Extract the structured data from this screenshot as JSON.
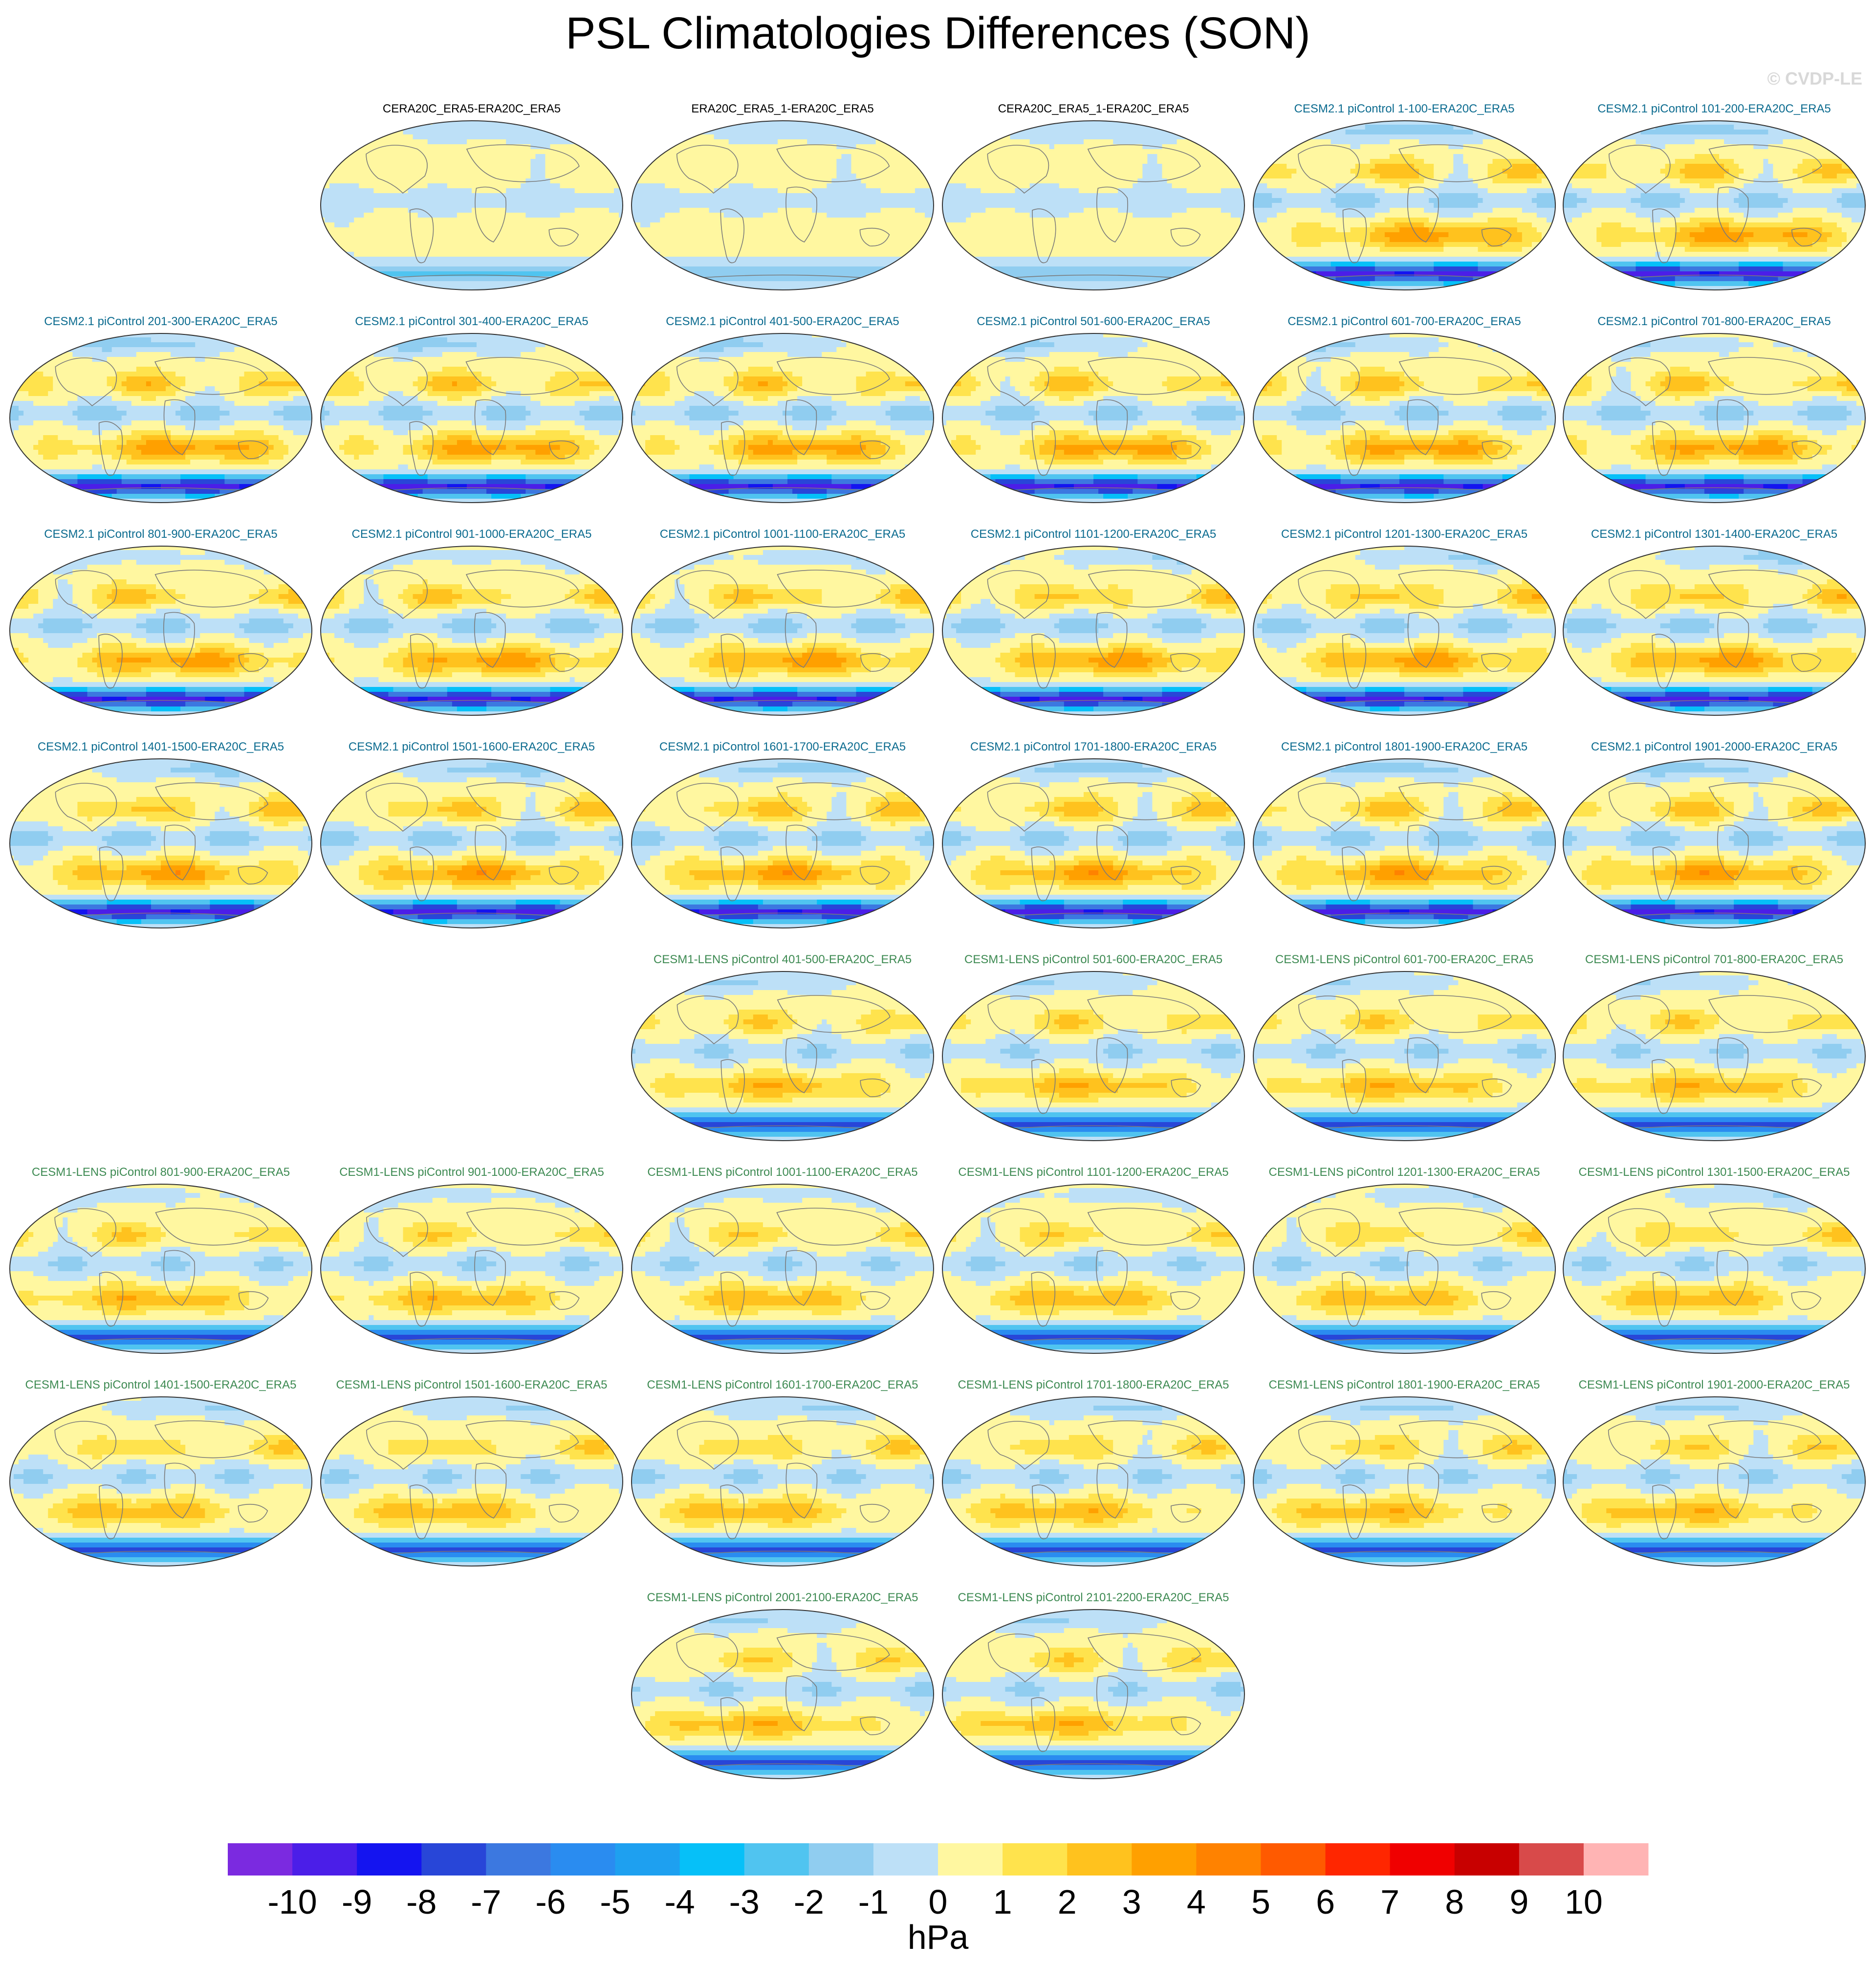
{
  "title": "PSL Climatologies Differences (SON)",
  "watermark": "© CVDP-LE",
  "chart_data": {
    "type": "heatmap",
    "projection": "robinson",
    "variable": "PSL",
    "season": "SON",
    "units": "hPa",
    "colorbar": {
      "levels": [
        -10,
        -9,
        -8,
        -7,
        -6,
        -5,
        -4,
        -3,
        -2,
        -1,
        0,
        1,
        2,
        3,
        4,
        5,
        6,
        7,
        8,
        9,
        10
      ],
      "tick_labels": [
        "-10",
        "-9",
        "-8",
        "-7",
        "-6",
        "-5",
        "-4",
        "-3",
        "-2",
        "-1",
        "0",
        "1",
        "2",
        "3",
        "4",
        "5",
        "6",
        "7",
        "8",
        "9",
        "10"
      ],
      "colors": [
        "#7b2ae0",
        "#4b1ee8",
        "#1414f0",
        "#2846d8",
        "#3c78e0",
        "#2a8cf0",
        "#1ea0f0",
        "#06c0f8",
        "#50c4f0",
        "#90cdf0",
        "#bde0f7",
        "#fff7a0",
        "#ffe34d",
        "#ffc21e",
        "#ffa000",
        "#ff8200",
        "#ff5a00",
        "#ff2600",
        "#f00000",
        "#c80000",
        "#d84a4a",
        "#ffb4b4"
      ],
      "unit_label": "hPa"
    },
    "panels": [
      {
        "title": "CERA20C_ERA5-ERA20C_ERA5",
        "group": "obs",
        "row": 0,
        "col": 1,
        "amp": 0.25,
        "seed": 1
      },
      {
        "title": "ERA20C_ERA5_1-ERA20C_ERA5",
        "group": "obs",
        "row": 0,
        "col": 2,
        "amp": 0.2,
        "seed": 2
      },
      {
        "title": "CERA20C_ERA5_1-ERA20C_ERA5",
        "group": "obs",
        "row": 0,
        "col": 3,
        "amp": 0.2,
        "seed": 3
      },
      {
        "title": "CESM2.1 piControl 1-100-ERA20C_ERA5",
        "group": "cesm2",
        "row": 0,
        "col": 4,
        "amp": 1,
        "seed": 4
      },
      {
        "title": "CESM2.1 piControl 101-200-ERA20C_ERA5",
        "group": "cesm2",
        "row": 0,
        "col": 5,
        "amp": 1,
        "seed": 5
      },
      {
        "title": "CESM2.1 piControl 201-300-ERA20C_ERA5",
        "group": "cesm2",
        "row": 1,
        "col": 0,
        "amp": 1,
        "seed": 6
      },
      {
        "title": "CESM2.1 piControl 301-400-ERA20C_ERA5",
        "group": "cesm2",
        "row": 1,
        "col": 1,
        "amp": 1,
        "seed": 7
      },
      {
        "title": "CESM2.1 piControl 401-500-ERA20C_ERA5",
        "group": "cesm2",
        "row": 1,
        "col": 2,
        "amp": 1,
        "seed": 8
      },
      {
        "title": "CESM2.1 piControl 501-600-ERA20C_ERA5",
        "group": "cesm2",
        "row": 1,
        "col": 3,
        "amp": 1,
        "seed": 9
      },
      {
        "title": "CESM2.1 piControl 601-700-ERA20C_ERA5",
        "group": "cesm2",
        "row": 1,
        "col": 4,
        "amp": 1,
        "seed": 10
      },
      {
        "title": "CESM2.1 piControl 701-800-ERA20C_ERA5",
        "group": "cesm2",
        "row": 1,
        "col": 5,
        "amp": 1,
        "seed": 11
      },
      {
        "title": "CESM2.1 piControl 801-900-ERA20C_ERA5",
        "group": "cesm2",
        "row": 2,
        "col": 0,
        "amp": 1,
        "seed": 12
      },
      {
        "title": "CESM2.1 piControl 901-1000-ERA20C_ERA5",
        "group": "cesm2",
        "row": 2,
        "col": 1,
        "amp": 1,
        "seed": 13
      },
      {
        "title": "CESM2.1 piControl 1001-1100-ERA20C_ERA5",
        "group": "cesm2",
        "row": 2,
        "col": 2,
        "amp": 1,
        "seed": 14
      },
      {
        "title": "CESM2.1 piControl 1101-1200-ERA20C_ERA5",
        "group": "cesm2",
        "row": 2,
        "col": 3,
        "amp": 1,
        "seed": 15
      },
      {
        "title": "CESM2.1 piControl 1201-1300-ERA20C_ERA5",
        "group": "cesm2",
        "row": 2,
        "col": 4,
        "amp": 1,
        "seed": 16
      },
      {
        "title": "CESM2.1 piControl 1301-1400-ERA20C_ERA5",
        "group": "cesm2",
        "row": 2,
        "col": 5,
        "amp": 1,
        "seed": 17
      },
      {
        "title": "CESM2.1 piControl 1401-1500-ERA20C_ERA5",
        "group": "cesm2",
        "row": 3,
        "col": 0,
        "amp": 1,
        "seed": 18
      },
      {
        "title": "CESM2.1 piControl 1501-1600-ERA20C_ERA5",
        "group": "cesm2",
        "row": 3,
        "col": 1,
        "amp": 1,
        "seed": 19
      },
      {
        "title": "CESM2.1 piControl 1601-1700-ERA20C_ERA5",
        "group": "cesm2",
        "row": 3,
        "col": 2,
        "amp": 1,
        "seed": 20
      },
      {
        "title": "CESM2.1 piControl 1701-1800-ERA20C_ERA5",
        "group": "cesm2",
        "row": 3,
        "col": 3,
        "amp": 1,
        "seed": 21
      },
      {
        "title": "CESM2.1 piControl 1801-1900-ERA20C_ERA5",
        "group": "cesm2",
        "row": 3,
        "col": 4,
        "amp": 1,
        "seed": 22
      },
      {
        "title": "CESM2.1 piControl 1901-2000-ERA20C_ERA5",
        "group": "cesm2",
        "row": 3,
        "col": 5,
        "amp": 1,
        "seed": 23
      },
      {
        "title": "CESM1-LENS piControl 401-500-ERA20C_ERA5",
        "group": "cesm1",
        "row": 4,
        "col": 2,
        "amp": 0.8,
        "seed": 24
      },
      {
        "title": "CESM1-LENS piControl 501-600-ERA20C_ERA5",
        "group": "cesm1",
        "row": 4,
        "col": 3,
        "amp": 0.8,
        "seed": 25
      },
      {
        "title": "CESM1-LENS piControl 601-700-ERA20C_ERA5",
        "group": "cesm1",
        "row": 4,
        "col": 4,
        "amp": 0.8,
        "seed": 26
      },
      {
        "title": "CESM1-LENS piControl 701-800-ERA20C_ERA5",
        "group": "cesm1",
        "row": 4,
        "col": 5,
        "amp": 0.8,
        "seed": 27
      },
      {
        "title": "CESM1-LENS piControl 801-900-ERA20C_ERA5",
        "group": "cesm1",
        "row": 5,
        "col": 0,
        "amp": 0.8,
        "seed": 28
      },
      {
        "title": "CESM1-LENS piControl 901-1000-ERA20C_ERA5",
        "group": "cesm1",
        "row": 5,
        "col": 1,
        "amp": 0.8,
        "seed": 29
      },
      {
        "title": "CESM1-LENS piControl 1001-1100-ERA20C_ERA5",
        "group": "cesm1",
        "row": 5,
        "col": 2,
        "amp": 0.8,
        "seed": 30
      },
      {
        "title": "CESM1-LENS piControl 1101-1200-ERA20C_ERA5",
        "group": "cesm1",
        "row": 5,
        "col": 3,
        "amp": 0.8,
        "seed": 31
      },
      {
        "title": "CESM1-LENS piControl 1201-1300-ERA20C_ERA5",
        "group": "cesm1",
        "row": 5,
        "col": 4,
        "amp": 0.8,
        "seed": 32
      },
      {
        "title": "CESM1-LENS piControl 1301-1500-ERA20C_ERA5",
        "group": "cesm1",
        "row": 5,
        "col": 5,
        "amp": 0.8,
        "seed": 33
      },
      {
        "title": "CESM1-LENS piControl 1401-1500-ERA20C_ERA5",
        "group": "cesm1",
        "row": 6,
        "col": 0,
        "amp": 0.8,
        "seed": 34
      },
      {
        "title": "CESM1-LENS piControl 1501-1600-ERA20C_ERA5",
        "group": "cesm1",
        "row": 6,
        "col": 1,
        "amp": 0.8,
        "seed": 35
      },
      {
        "title": "CESM1-LENS piControl 1601-1700-ERA20C_ERA5",
        "group": "cesm1",
        "row": 6,
        "col": 2,
        "amp": 0.8,
        "seed": 36
      },
      {
        "title": "CESM1-LENS piControl 1701-1800-ERA20C_ERA5",
        "group": "cesm1",
        "row": 6,
        "col": 3,
        "amp": 0.8,
        "seed": 37
      },
      {
        "title": "CESM1-LENS piControl 1801-1900-ERA20C_ERA5",
        "group": "cesm1",
        "row": 6,
        "col": 4,
        "amp": 0.8,
        "seed": 38
      },
      {
        "title": "CESM1-LENS piControl 1901-2000-ERA20C_ERA5",
        "group": "cesm1",
        "row": 6,
        "col": 5,
        "amp": 0.8,
        "seed": 39
      },
      {
        "title": "CESM1-LENS piControl 2001-2100-ERA20C_ERA5",
        "group": "cesm1",
        "row": 7,
        "col": 2,
        "amp": 0.8,
        "seed": 40
      },
      {
        "title": "CESM1-LENS piControl 2101-2200-ERA20C_ERA5",
        "group": "cesm1",
        "row": 7,
        "col": 3,
        "amp": 0.8,
        "seed": 41
      }
    ]
  }
}
